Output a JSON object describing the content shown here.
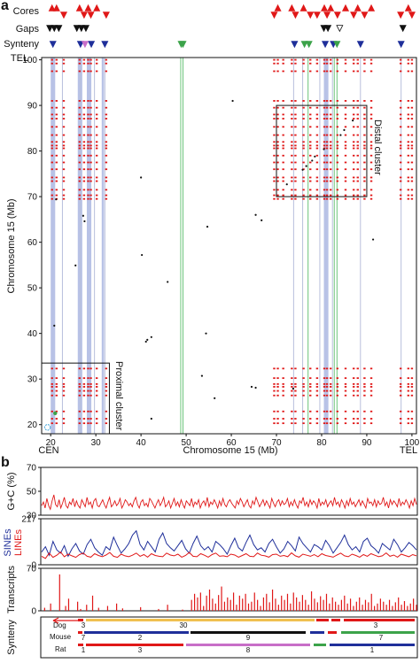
{
  "panel_a": {
    "label": "a",
    "track_labels": {
      "cores": "Cores",
      "gaps": "Gaps",
      "synteny": "Synteny"
    },
    "end_labels": {
      "tel_top": "TEL",
      "cen": "CEN",
      "tel_right": "TEL"
    },
    "cluster_labels": {
      "distal": "Distal cluster",
      "proximal": "Proximal cluster"
    }
  },
  "panel_b": {
    "label": "b",
    "tracks": {
      "gc": {
        "ylabel": "G+C (%)"
      },
      "repeats": {
        "ylabel_sines": "SINEs",
        "ylabel_lines": "LINEs"
      },
      "transcripts": {
        "ylabel": "Transcripts"
      },
      "synteny": {
        "ylabel": "Synteny"
      }
    },
    "synteny_map": {
      "rows": [
        {
          "species": "Dog",
          "numbers": [
            "3",
            "30",
            "3"
          ]
        },
        {
          "species": "Mouse",
          "numbers": [
            "7",
            "2",
            "9",
            "7"
          ]
        },
        {
          "species": "Rat",
          "numbers": [
            "1",
            "3",
            "8",
            "1"
          ]
        }
      ]
    }
  },
  "chart_data": [
    {
      "type": "scatter",
      "title": "",
      "xlabel": "Chromosome 15 (Mb)",
      "ylabel": "Chromosome 15 (Mb)",
      "xlim": [
        18,
        101
      ],
      "ylim": [
        18,
        100.5
      ],
      "xticks": [
        20,
        30,
        40,
        50,
        60,
        70,
        80,
        90,
        100
      ],
      "yticks": [
        20,
        30,
        40,
        50,
        60,
        70,
        80,
        90,
        100
      ],
      "grid": false,
      "colors": {
        "duplication": "#e01818",
        "singleton": "#111111",
        "shaded_band": "#b8c2e6",
        "green_line": "#6cc47a",
        "cluster_box": "#111111"
      },
      "shaded_bands": [
        [
          20.0,
          21.0
        ],
        [
          26.0,
          27.0
        ],
        [
          28.0,
          29.0
        ],
        [
          31.3,
          31.8
        ],
        [
          80.5,
          81.5
        ]
      ],
      "thin_lines_gray": [
        [
          22.6,
          23.0
        ],
        [
          26.6,
          26.8
        ],
        [
          29.7,
          29.9
        ],
        [
          32.0,
          32.1
        ],
        [
          73.8,
          74.1
        ],
        [
          75.8,
          76.1
        ],
        [
          79.6,
          79.8
        ],
        [
          82.4,
          82.6
        ],
        [
          88.6,
          88.8
        ],
        [
          97.6,
          97.8
        ]
      ],
      "thin_lines_green": [
        48.8,
        49.3,
        77.0,
        82.8,
        83.4
      ],
      "duplication_positions": [
        20.3,
        21.3,
        22.9,
        26.4,
        27.4,
        28.3,
        28.9,
        30.2,
        32.3,
        69.5,
        70.3,
        71.5,
        73.4,
        74.2,
        76.0,
        77.5,
        79.0,
        80.6,
        81.2,
        82.0,
        83.5,
        85.3,
        87.1,
        88.0,
        89.5,
        91.0,
        97.5,
        99.2,
        100.0
      ],
      "distal_cluster": {
        "x": [
          70.0,
          90.0
        ],
        "y": [
          70.0,
          90.0
        ]
      },
      "proximal_cluster": {
        "x": [
          18.0,
          33.0
        ],
        "y": [
          18.0,
          33.5
        ]
      },
      "singletons": [
        {
          "x": 60.3,
          "y": 91.0
        },
        {
          "x": 40.0,
          "y": 74.2
        },
        {
          "x": 21.2,
          "y": 69.4
        },
        {
          "x": 27.5,
          "y": 64.6
        },
        {
          "x": 27.2,
          "y": 65.8
        },
        {
          "x": 54.7,
          "y": 63.4
        },
        {
          "x": 66.7,
          "y": 64.8
        },
        {
          "x": 65.4,
          "y": 66.0
        },
        {
          "x": 91.4,
          "y": 60.6
        },
        {
          "x": 40.2,
          "y": 57.2
        },
        {
          "x": 25.5,
          "y": 54.9
        },
        {
          "x": 45.9,
          "y": 51.3
        },
        {
          "x": 41.4,
          "y": 38.6
        },
        {
          "x": 41.1,
          "y": 38.2
        },
        {
          "x": 42.3,
          "y": 39.2
        },
        {
          "x": 54.4,
          "y": 40.0
        },
        {
          "x": 20.8,
          "y": 41.7
        },
        {
          "x": 53.5,
          "y": 30.7
        },
        {
          "x": 56.3,
          "y": 25.8
        },
        {
          "x": 64.5,
          "y": 28.3
        },
        {
          "x": 65.4,
          "y": 28.1
        },
        {
          "x": 73.7,
          "y": 27.9
        },
        {
          "x": 42.3,
          "y": 21.3
        },
        {
          "x": 77.9,
          "y": 77.9
        },
        {
          "x": 78.5,
          "y": 78.8
        },
        {
          "x": 76.6,
          "y": 76.7
        },
        {
          "x": 72.3,
          "y": 72.7
        },
        {
          "x": 80.5,
          "y": 80.4
        },
        {
          "x": 84.2,
          "y": 83.5
        },
        {
          "x": 85.0,
          "y": 84.6
        },
        {
          "x": 86.9,
          "y": 86.7
        },
        {
          "x": 75.8,
          "y": 75.9
        }
      ]
    },
    {
      "type": "line",
      "title": "",
      "ylabel": "G+C (%)",
      "xlim": [
        18,
        101
      ],
      "ylim": [
        30,
        70
      ],
      "yticks": [
        30,
        50,
        70
      ],
      "series": [
        {
          "color": "#e01818"
        }
      ],
      "x_start": 18.5,
      "x_end": 100.5,
      "values": [
        38,
        41,
        36,
        44,
        38,
        35,
        42,
        47,
        39,
        37,
        43,
        36,
        40,
        45,
        38,
        36,
        41,
        39,
        44,
        37,
        42,
        38,
        36,
        43,
        40,
        37,
        45,
        39,
        41,
        36,
        42,
        44,
        38,
        37,
        40,
        43,
        39,
        36,
        41,
        45,
        37,
        39,
        42,
        38,
        40,
        44,
        36,
        39,
        43,
        41,
        38,
        40,
        37,
        42,
        45,
        39,
        36,
        41,
        43,
        38,
        40,
        37,
        44,
        42,
        39,
        36,
        40,
        43,
        38,
        41,
        45,
        37,
        39,
        42,
        36,
        40,
        44,
        38,
        41,
        37,
        43,
        39,
        36,
        42,
        40,
        38,
        44,
        37,
        41,
        39,
        43,
        36,
        40,
        42,
        38,
        45,
        37,
        41,
        39,
        43,
        40,
        36,
        42,
        38,
        44,
        39,
        37,
        41,
        43,
        40,
        38,
        36,
        42,
        39,
        44,
        41,
        37,
        40,
        43,
        38,
        36,
        42,
        39,
        45,
        41,
        37,
        40,
        43,
        38,
        42,
        39,
        36,
        44,
        40,
        37,
        41,
        43,
        38,
        42,
        39,
        40,
        44,
        37,
        41,
        38,
        43,
        39,
        36,
        42,
        40,
        45,
        38,
        41,
        37,
        43,
        39,
        42,
        40,
        36,
        44,
        38,
        41,
        39,
        43,
        37,
        40,
        42,
        38,
        45,
        39,
        41,
        37,
        43,
        40,
        36,
        42,
        38,
        44,
        39,
        41,
        37,
        40,
        43,
        38,
        42,
        39,
        36,
        44,
        40,
        41,
        38,
        43,
        37,
        42,
        39,
        40,
        45,
        38,
        41,
        36,
        43,
        39,
        42,
        40,
        37,
        44,
        38,
        41,
        39,
        43,
        40,
        36,
        42,
        38,
        44,
        39
      ]
    },
    {
      "type": "line",
      "title": "",
      "ylim": [
        0,
        217
      ],
      "yticks": [
        0,
        217
      ],
      "x_start": 18.5,
      "x_end": 100.5,
      "series": [
        {
          "name": "SINEs",
          "color": "#1f2f9a",
          "values": [
            60,
            85,
            45,
            110,
            70,
            55,
            90,
            40,
            75,
            100,
            65,
            50,
            95,
            120,
            80,
            60,
            45,
            85,
            70,
            130,
            90,
            55,
            75,
            100,
            140,
            160,
            95,
            70,
            110,
            85,
            60,
            120,
            150,
            100,
            80,
            65,
            90,
            115,
            75,
            55,
            100,
            135,
            90,
            70,
            85,
            60,
            110,
            95,
            75,
            50,
            90,
            125,
            80,
            65,
            105,
            140,
            95,
            70,
            80,
            60,
            100,
            120,
            85,
            55,
            75,
            110,
            90,
            65,
            130,
            100,
            80,
            60,
            95,
            85,
            70,
            115,
            90,
            55,
            80,
            105,
            140,
            95,
            70,
            85,
            60,
            110,
            125,
            90,
            75,
            55,
            100,
            85,
            70,
            120,
            95,
            60,
            80,
            105,
            90,
            70
          ]
        },
        {
          "name": "LINEs",
          "color": "#e01818",
          "values": [
            40,
            30,
            55,
            35,
            45,
            60,
            38,
            50,
            42,
            35,
            48,
            55,
            40,
            36,
            52,
            44,
            38,
            46,
            58,
            40,
            35,
            50,
            42,
            38,
            45,
            55,
            40,
            48,
            36,
            52,
            44,
            40,
            38,
            55,
            46,
            42,
            50,
            36,
            44,
            58,
            40,
            38,
            52,
            45,
            36,
            48,
            55,
            40,
            42,
            38,
            50,
            46,
            36,
            44,
            52,
            40,
            38,
            55,
            45,
            42,
            36,
            48,
            50,
            40,
            44,
            38,
            56,
            42,
            36,
            50,
            45,
            40,
            48,
            38,
            52,
            44,
            40,
            36,
            46,
            55,
            42,
            38,
            50,
            44,
            36,
            48,
            40,
            52,
            45,
            38,
            42,
            56,
            40,
            46,
            36,
            50,
            44,
            38,
            48,
            42
          ]
        }
      ]
    },
    {
      "type": "bar",
      "title": "",
      "ylabel": "Transcripts",
      "ylim": [
        0,
        70
      ],
      "yticks": [
        0,
        70
      ],
      "series": [
        {
          "color": "#e01818"
        }
      ],
      "x_start": 18.5,
      "x_end": 100.5,
      "values": [
        0,
        5,
        0,
        12,
        0,
        0,
        60,
        0,
        8,
        20,
        0,
        0,
        15,
        3,
        0,
        10,
        0,
        25,
        0,
        5,
        0,
        0,
        8,
        0,
        0,
        12,
        0,
        4,
        0,
        0,
        0,
        0,
        0,
        6,
        0,
        0,
        0,
        0,
        0,
        3,
        0,
        0,
        10,
        0,
        0,
        0,
        0,
        2,
        0,
        0,
        18,
        28,
        22,
        30,
        8,
        25,
        35,
        20,
        12,
        26,
        40,
        15,
        22,
        18,
        30,
        10,
        25,
        20,
        28,
        12,
        15,
        30,
        18,
        8,
        22,
        28,
        14,
        35,
        20,
        10,
        25,
        18,
        28,
        12,
        30,
        22,
        15,
        26,
        18,
        10,
        32,
        20,
        14,
        24,
        18,
        28,
        12,
        22,
        15,
        10,
        18,
        25,
        12,
        20,
        8,
        15,
        22,
        10,
        18,
        14,
        28,
        8,
        12,
        20,
        15,
        10,
        18,
        8,
        14,
        22,
        10,
        16,
        8,
        12,
        20,
        10
      ]
    }
  ]
}
